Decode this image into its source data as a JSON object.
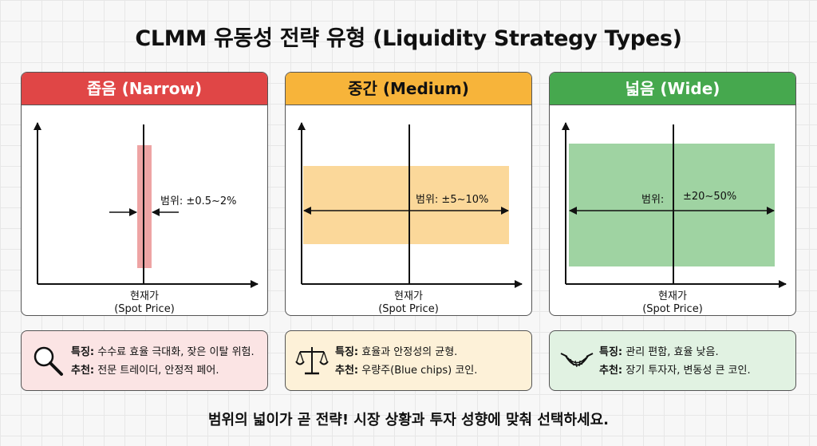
{
  "title": "CLMM 유동성 전략 유형 (Liquidity Strategy Types)",
  "colors": {
    "narrow": "#e04646",
    "narrow_fill": "#eea4a4",
    "narrow_info": "#fbe4e4",
    "medium": "#f7b43a",
    "medium_fill": "#fbd89a",
    "medium_info": "#fdf1d8",
    "wide": "#46a84e",
    "wide_fill": "#9fd3a2",
    "wide_info": "#e1f2e2"
  },
  "cards": [
    {
      "header": "좁음 (Narrow)",
      "range_label": "범위: ±0.5~2%",
      "spot_label_ko": "현재가",
      "spot_label_en": "(Spot Price)",
      "icon": "magnifier-icon",
      "feature_key": "특징:",
      "feature_text": " 수수료 효율 극대화, 잦은 이탈 위험.",
      "recommend_key": "추천:",
      "recommend_text": " 전문 트레이더, 안정적 페어."
    },
    {
      "header": "중간 (Medium)",
      "range_label": "범위: ±5~10%",
      "spot_label_ko": "현재가",
      "spot_label_en": "(Spot Price)",
      "icon": "balance-scale-icon",
      "feature_key": "특징:",
      "feature_text": " 효율과 안정성의 균형.",
      "recommend_key": "추천:",
      "recommend_text": " 우량주(Blue chips) 코인."
    },
    {
      "header": "넓음 (Wide)",
      "range_label_a": "범위:",
      "range_label_b": "±20~50%",
      "spot_label_ko": "현재가",
      "spot_label_en": "(Spot Price)",
      "icon": "hammock-icon",
      "feature_key": "특징:",
      "feature_text": " 관리 편함, 효율 낮음.",
      "recommend_key": "추천:",
      "recommend_text": " 장기 투자자, 변동성 큰 코인."
    }
  ],
  "footer": "범위의 넓이가 곧 전략! 시장 상황과 투자 성향에 맞춰 선택하세요."
}
